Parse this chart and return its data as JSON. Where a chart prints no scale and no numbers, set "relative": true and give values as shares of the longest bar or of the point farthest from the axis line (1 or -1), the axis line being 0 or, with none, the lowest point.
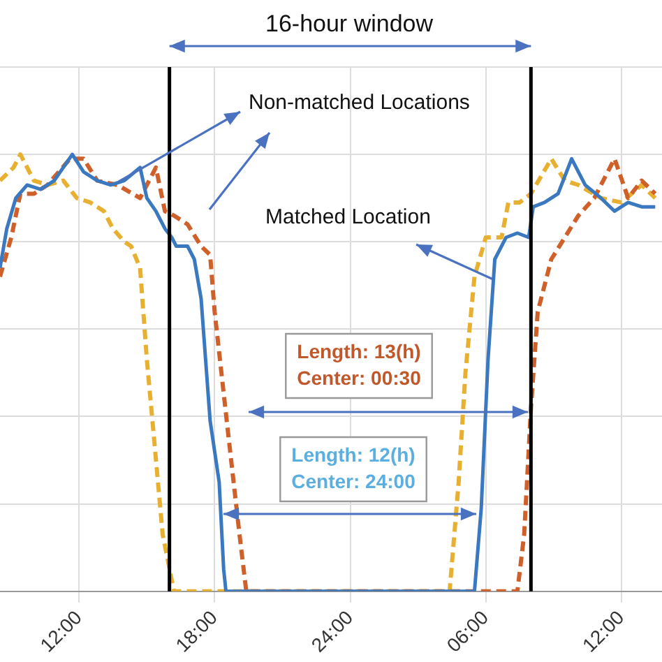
{
  "chart_data": {
    "type": "line",
    "relative": true,
    "xlim": [
      "--01-01T08:30",
      "--01-02T13:48"
    ],
    "xticks": [
      {
        "value": "--01-01T12:00",
        "label": "12:00"
      },
      {
        "value": "--01-01T18:00",
        "label": "18:00"
      },
      {
        "value": "--01-02T00:00",
        "label": "24:00"
      },
      {
        "value": "--01-02T06:00",
        "label": "06:00"
      },
      {
        "value": "--01-02T12:00",
        "label": "12:00"
      }
    ],
    "grid": true,
    "legend": false,
    "marker": "none",
    "series": [
      {
        "color": "#3a78c0",
        "line_style": "solid",
        "x": [
          "--01-01T08:30",
          "--01-01T08:48",
          "--01-01T09:12",
          "--01-01T09:42",
          "--01-01T10:18",
          "--01-01T10:54",
          "--01-01T11:42",
          "--01-01T12:12",
          "--01-01T12:48",
          "--01-01T13:24",
          "--01-01T14:00",
          "--01-01T14:42",
          "--01-01T15:00",
          "--01-01T15:24",
          "--01-01T15:48",
          "--01-01T16:06",
          "--01-01T16:18",
          "--01-01T16:48",
          "--01-01T17:06",
          "--01-01T17:24",
          "--01-01T17:36",
          "--01-01T17:48",
          "--01-01T18:12",
          "--01-01T18:24",
          "--01-01T18:30",
          "--01-02T05:30",
          "--01-02T05:48",
          "--01-02T06:06",
          "--01-02T06:24",
          "--01-02T06:54",
          "--01-02T07:24",
          "--01-02T07:54",
          "--01-02T08:06",
          "--01-02T08:36",
          "--01-02T09:12",
          "--01-02T09:48",
          "--01-02T10:24",
          "--01-02T11:06",
          "--01-02T11:42",
          "--01-02T12:18",
          "--01-02T12:54",
          "--01-02T13:30"
        ],
        "values": [
          0.74,
          0.83,
          0.9,
          0.93,
          0.92,
          0.94,
          1,
          0.96,
          0.94,
          0.93,
          0.94,
          0.97,
          0.9,
          0.87,
          0.83,
          0.81,
          0.79,
          0.79,
          0.76,
          0.67,
          0.53,
          0.39,
          0.25,
          0.05,
          0,
          0,
          0.19,
          0.53,
          0.76,
          0.81,
          0.82,
          0.81,
          0.88,
          0.89,
          0.91,
          0.99,
          0.93,
          0.9,
          0.87,
          0.89,
          0.88,
          0.88
        ]
      },
      {
        "color": "#d0602a",
        "line_style": "dashed",
        "x": [
          "--01-01T08:30",
          "--01-01T09:00",
          "--01-01T09:24",
          "--01-01T10:00",
          "--01-01T10:36",
          "--01-01T11:36",
          "--01-01T12:12",
          "--01-01T12:48",
          "--01-01T13:42",
          "--01-01T14:42",
          "--01-01T15:24",
          "--01-01T15:48",
          "--01-01T16:12",
          "--01-01T16:48",
          "--01-01T17:24",
          "--01-01T17:48",
          "--01-01T18:00",
          "--01-01T18:36",
          "--01-01T19:06",
          "--01-01T19:24",
          "--01-02T07:24",
          "--01-02T07:42",
          "--01-02T08:00",
          "--01-02T08:18",
          "--01-02T08:54",
          "--01-02T09:30",
          "--01-02T10:06",
          "--01-02T10:48",
          "--01-02T11:42",
          "--01-02T12:18",
          "--01-02T12:54",
          "--01-02T13:30"
        ],
        "values": [
          0.72,
          0.81,
          0.91,
          0.91,
          0.93,
          0.99,
          0.99,
          0.94,
          0.93,
          0.9,
          0.97,
          0.87,
          0.86,
          0.84,
          0.79,
          0.77,
          0.64,
          0.36,
          0.13,
          0,
          0,
          0.13,
          0.42,
          0.64,
          0.76,
          0.81,
          0.86,
          0.9,
          0.99,
          0.9,
          0.94,
          0.91
        ]
      },
      {
        "color": "#e8b030",
        "line_style": "dashed",
        "x": [
          "--01-01T08:30",
          "--01-01T09:06",
          "--01-01T09:24",
          "--01-01T10:00",
          "--01-01T10:36",
          "--01-01T11:18",
          "--01-01T11:54",
          "--01-01T12:30",
          "--01-01T13:06",
          "--01-01T13:30",
          "--01-01T14:00",
          "--01-01T14:18",
          "--01-01T14:42",
          "--01-01T15:00",
          "--01-01T15:18",
          "--01-01T15:42",
          "--01-01T16:12",
          "--01-02T04:24",
          "--01-02T04:48",
          "--01-02T05:06",
          "--01-02T05:30",
          "--01-02T06:00",
          "--01-02T06:42",
          "--01-02T07:00",
          "--01-02T07:30",
          "--01-02T08:00",
          "--01-02T08:54",
          "--01-02T09:30",
          "--01-02T10:06",
          "--01-02T11:06",
          "--01-02T12:00",
          "--01-02T12:54",
          "--01-02T13:30"
        ],
        "values": [
          0.94,
          0.97,
          1,
          0.94,
          0.93,
          0.94,
          0.9,
          0.89,
          0.87,
          0.83,
          0.8,
          0.79,
          0.74,
          0.53,
          0.36,
          0.13,
          0,
          0,
          0.25,
          0.5,
          0.72,
          0.81,
          0.81,
          0.89,
          0.89,
          0.91,
          0.99,
          0.94,
          0.93,
          0.9,
          0.89,
          0.93,
          0.9
        ]
      }
    ],
    "ref_lines": [
      {
        "axis": "x",
        "value": "--01-01T16:00",
        "color": "#000000"
      },
      {
        "axis": "x",
        "value": "--01-02T08:00",
        "color": "#000000"
      }
    ],
    "annotations": [
      "16-hour window",
      "Non-matched Locations",
      "Matched Location",
      "Length: 13(h)\nCenter: 00:30",
      "Length: 12(h)\nCenter: 24:00"
    ]
  }
}
